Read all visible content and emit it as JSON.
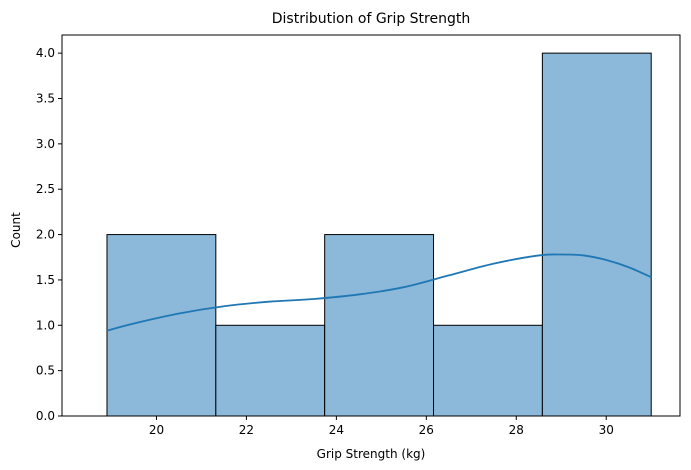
{
  "chart_data": {
    "type": "bar",
    "title": "Distribution of Grip Strength",
    "xlabel": "Grip Strength (kg)",
    "ylabel": "Count",
    "bins": [
      {
        "start": 18.9,
        "end": 21.32,
        "count": 2
      },
      {
        "start": 21.32,
        "end": 23.74,
        "count": 1
      },
      {
        "start": 23.74,
        "end": 26.16,
        "count": 2
      },
      {
        "start": 26.16,
        "end": 28.58,
        "count": 1
      },
      {
        "start": 28.58,
        "end": 31.0,
        "count": 4
      }
    ],
    "kde": {
      "x": [
        18.9,
        19.5,
        20.5,
        21.5,
        22.5,
        23.5,
        24.5,
        25.5,
        26.5,
        27.5,
        28.5,
        29.0,
        29.5,
        30.0,
        30.5,
        31.0
      ],
      "y": [
        0.94,
        1.02,
        1.13,
        1.21,
        1.26,
        1.29,
        1.34,
        1.42,
        1.55,
        1.68,
        1.77,
        1.78,
        1.77,
        1.72,
        1.64,
        1.53
      ]
    },
    "xlim": [
      17.9,
      31.64
    ],
    "ylim": [
      0,
      4.2
    ],
    "xticks": [
      20,
      22,
      24,
      26,
      28,
      30
    ],
    "yticks": [
      0.0,
      0.5,
      1.0,
      1.5,
      2.0,
      2.5,
      3.0,
      3.5,
      4.0
    ],
    "xtick_labels": [
      "20",
      "22",
      "24",
      "26",
      "28",
      "30"
    ],
    "ytick_labels": [
      "0.0",
      "0.5",
      "1.0",
      "1.5",
      "2.0",
      "2.5",
      "3.0",
      "3.5",
      "4.0"
    ],
    "bar_color": "#8cb8d9",
    "edge_color": "#000000",
    "line_color": "#1f77b4",
    "grid": false,
    "legend": "none"
  }
}
